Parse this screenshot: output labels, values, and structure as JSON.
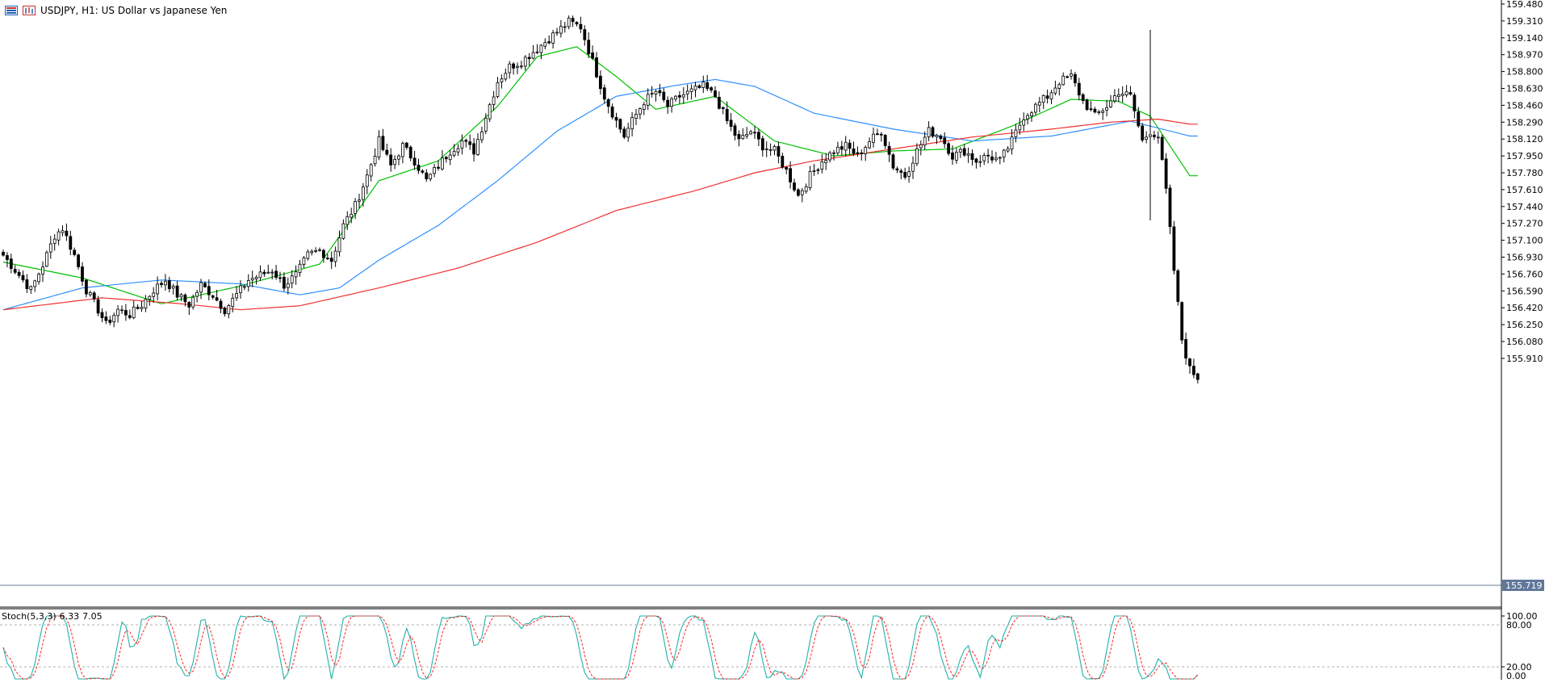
{
  "header": {
    "symbol_line": "USDJPY, H1:  US Dollar vs Japanese Yen"
  },
  "price_axis": {
    "ticks": [
      "159.480",
      "159.310",
      "159.140",
      "158.970",
      "158.800",
      "158.630",
      "158.460",
      "158.290",
      "158.120",
      "157.950",
      "157.780",
      "157.610",
      "157.440",
      "157.270",
      "157.100",
      "156.930",
      "156.760",
      "156.590",
      "156.420",
      "156.250",
      "156.080",
      "155.910"
    ],
    "current_price": "155.719",
    "current_price_color": "#5f7799"
  },
  "stochastic": {
    "label": "Stoch(5,3,3)",
    "main_value": "6.33",
    "signal_value": "7.05",
    "levels": [
      "100.00",
      "80.00",
      "20.00",
      "0.00"
    ],
    "main_color": "#20b2aa",
    "signal_color": "#ff2020"
  },
  "chart_data": {
    "type": "candlestick",
    "symbol": "USDJPY",
    "timeframe": "H1",
    "ylim": [
      155.7,
      159.48
    ],
    "close_anchors": [
      [
        0,
        156.95
      ],
      [
        4,
        156.75
      ],
      [
        7,
        156.6
      ],
      [
        10,
        156.85
      ],
      [
        13,
        157.15
      ],
      [
        15,
        157.22
      ],
      [
        18,
        156.95
      ],
      [
        21,
        156.6
      ],
      [
        24,
        156.4
      ],
      [
        26,
        156.25
      ],
      [
        29,
        156.4
      ],
      [
        32,
        156.35
      ],
      [
        35,
        156.45
      ],
      [
        38,
        156.6
      ],
      [
        41,
        156.7
      ],
      [
        44,
        156.55
      ],
      [
        47,
        156.45
      ],
      [
        50,
        156.65
      ],
      [
        53,
        156.55
      ],
      [
        56,
        156.4
      ],
      [
        59,
        156.55
      ],
      [
        62,
        156.7
      ],
      [
        65,
        156.75
      ],
      [
        68,
        156.8
      ],
      [
        71,
        156.65
      ],
      [
        74,
        156.75
      ],
      [
        77,
        156.95
      ],
      [
        80,
        157.0
      ],
      [
        83,
        156.9
      ],
      [
        86,
        157.25
      ],
      [
        89,
        157.45
      ],
      [
        92,
        157.75
      ],
      [
        95,
        158.1
      ],
      [
        98,
        157.85
      ],
      [
        101,
        158.05
      ],
      [
        104,
        157.9
      ],
      [
        107,
        157.7
      ],
      [
        110,
        157.85
      ],
      [
        113,
        158.0
      ],
      [
        116,
        158.1
      ],
      [
        119,
        158.0
      ],
      [
        122,
        158.35
      ],
      [
        125,
        158.7
      ],
      [
        128,
        158.85
      ],
      [
        131,
        158.9
      ],
      [
        134,
        159.0
      ],
      [
        137,
        159.1
      ],
      [
        140,
        159.2
      ],
      [
        143,
        159.3
      ],
      [
        146,
        159.25
      ],
      [
        149,
        158.9
      ],
      [
        152,
        158.55
      ],
      [
        155,
        158.3
      ],
      [
        157,
        158.15
      ],
      [
        159,
        158.3
      ],
      [
        162,
        158.5
      ],
      [
        165,
        158.6
      ],
      [
        168,
        158.45
      ],
      [
        171,
        158.55
      ],
      [
        174,
        158.6
      ],
      [
        177,
        158.65
      ],
      [
        180,
        158.55
      ],
      [
        183,
        158.3
      ],
      [
        186,
        158.1
      ],
      [
        189,
        158.2
      ],
      [
        192,
        158.05
      ],
      [
        195,
        158.0
      ],
      [
        198,
        157.8
      ],
      [
        201,
        157.55
      ],
      [
        204,
        157.75
      ],
      [
        207,
        157.9
      ],
      [
        210,
        158.0
      ],
      [
        213,
        158.05
      ],
      [
        216,
        157.95
      ],
      [
        219,
        158.1
      ],
      [
        222,
        158.2
      ],
      [
        225,
        157.85
      ],
      [
        228,
        157.75
      ],
      [
        231,
        158.0
      ],
      [
        234,
        158.2
      ],
      [
        237,
        158.15
      ],
      [
        240,
        157.95
      ],
      [
        243,
        158.0
      ],
      [
        246,
        157.9
      ],
      [
        249,
        157.95
      ],
      [
        252,
        157.9
      ],
      [
        255,
        158.1
      ],
      [
        258,
        158.35
      ],
      [
        261,
        158.45
      ],
      [
        264,
        158.55
      ],
      [
        267,
        158.7
      ],
      [
        270,
        158.75
      ],
      [
        273,
        158.5
      ],
      [
        276,
        158.35
      ],
      [
        279,
        158.45
      ],
      [
        282,
        158.6
      ],
      [
        285,
        158.55
      ],
      [
        288,
        158.1
      ],
      [
        290,
        158.2
      ],
      [
        292,
        158.15
      ],
      [
        294,
        157.6
      ],
      [
        296,
        156.8
      ],
      [
        298,
        156.1
      ],
      [
        300,
        155.8
      ],
      [
        302,
        155.72
      ]
    ],
    "moving_averages": [
      {
        "color": "#00c000",
        "samples": [
          [
            0,
            156.88
          ],
          [
            20,
            156.72
          ],
          [
            40,
            156.46
          ],
          [
            60,
            156.64
          ],
          [
            80,
            156.86
          ],
          [
            95,
            157.7
          ],
          [
            110,
            157.9
          ],
          [
            125,
            158.45
          ],
          [
            135,
            158.95
          ],
          [
            145,
            159.05
          ],
          [
            155,
            158.75
          ],
          [
            165,
            158.42
          ],
          [
            180,
            158.55
          ],
          [
            195,
            158.1
          ],
          [
            210,
            157.95
          ],
          [
            225,
            158.0
          ],
          [
            240,
            158.02
          ],
          [
            255,
            158.25
          ],
          [
            270,
            158.52
          ],
          [
            282,
            158.5
          ],
          [
            290,
            158.35
          ],
          [
            300,
            157.75
          ]
        ]
      },
      {
        "color": "#3090ff",
        "samples": [
          [
            0,
            156.4
          ],
          [
            20,
            156.62
          ],
          [
            40,
            156.7
          ],
          [
            60,
            156.66
          ],
          [
            75,
            156.55
          ],
          [
            85,
            156.62
          ],
          [
            95,
            156.9
          ],
          [
            110,
            157.25
          ],
          [
            125,
            157.7
          ],
          [
            140,
            158.2
          ],
          [
            155,
            158.55
          ],
          [
            170,
            158.66
          ],
          [
            180,
            158.72
          ],
          [
            190,
            158.65
          ],
          [
            205,
            158.38
          ],
          [
            225,
            158.22
          ],
          [
            245,
            158.1
          ],
          [
            265,
            158.15
          ],
          [
            285,
            158.3
          ],
          [
            300,
            158.15
          ]
        ]
      },
      {
        "color": "#f03030",
        "samples": [
          [
            0,
            156.4
          ],
          [
            25,
            156.52
          ],
          [
            45,
            156.46
          ],
          [
            60,
            156.4
          ],
          [
            75,
            156.44
          ],
          [
            95,
            156.62
          ],
          [
            115,
            156.82
          ],
          [
            135,
            157.08
          ],
          [
            155,
            157.4
          ],
          [
            175,
            157.6
          ],
          [
            190,
            157.78
          ],
          [
            205,
            157.9
          ],
          [
            225,
            158.02
          ],
          [
            245,
            158.14
          ],
          [
            265,
            158.22
          ],
          [
            280,
            158.29
          ],
          [
            292,
            158.32
          ],
          [
            300,
            158.27
          ]
        ]
      }
    ],
    "stochastic": {
      "main_last": 6.33,
      "signal_last": 7.05,
      "levels": [
        100,
        80,
        20,
        0
      ]
    }
  }
}
